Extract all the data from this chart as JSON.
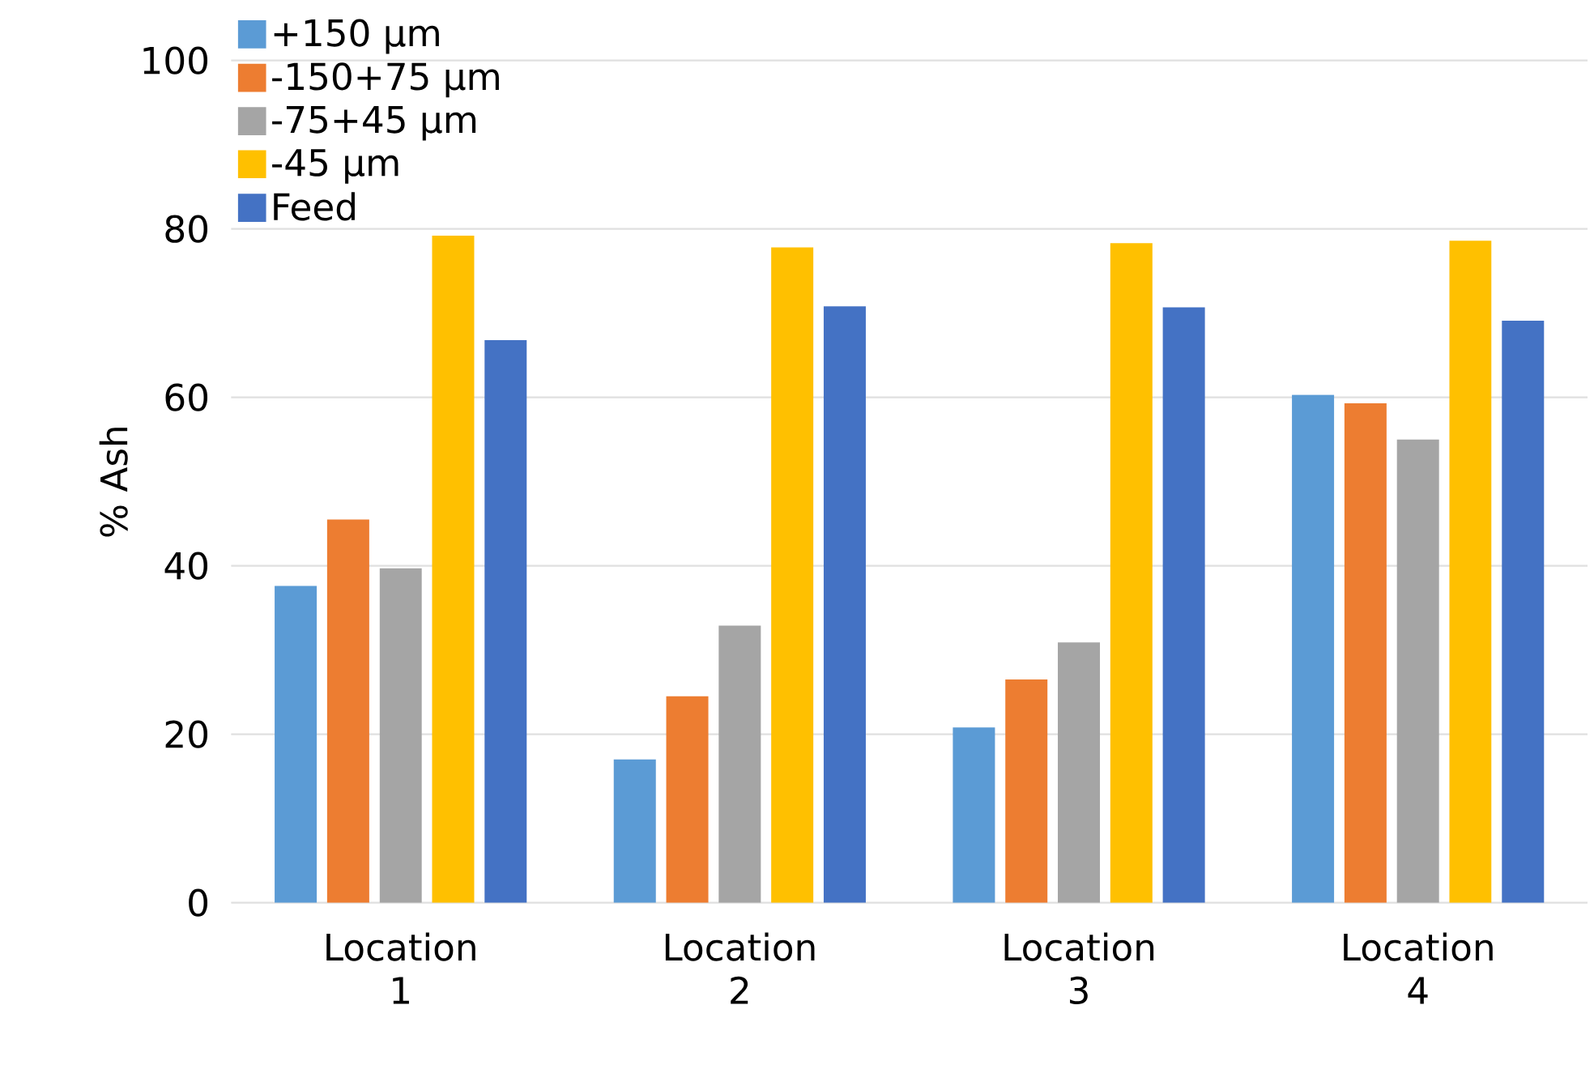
{
  "chart_data": {
    "type": "bar",
    "ylabel": "% Ash",
    "categories": [
      "Location 1",
      "Location 2",
      "Location 3",
      "Location 4"
    ],
    "series": [
      {
        "name": "+150 µm",
        "color": "#5b9bd5",
        "values": [
          37.6,
          17.0,
          20.8,
          60.3
        ]
      },
      {
        "name": "-150+75 µm",
        "color": "#ed7d31",
        "values": [
          45.5,
          24.5,
          26.5,
          59.3
        ]
      },
      {
        "name": "-75+45 µm",
        "color": "#a5a5a5",
        "values": [
          39.7,
          32.9,
          30.9,
          55.0
        ]
      },
      {
        "name": "-45 µm",
        "color": "#ffc000",
        "values": [
          79.2,
          77.8,
          78.3,
          78.6
        ]
      },
      {
        "name": "Feed",
        "color": "#4472c4",
        "values": [
          66.8,
          70.8,
          70.7,
          69.1
        ]
      }
    ],
    "ylim": [
      0,
      100
    ],
    "yticks": [
      0,
      20,
      40,
      60,
      80,
      100
    ],
    "grid": "y",
    "legend": "top left"
  }
}
